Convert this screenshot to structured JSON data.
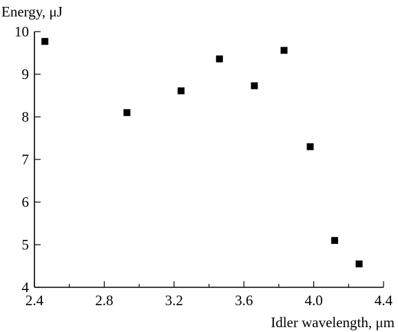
{
  "chart_data": {
    "type": "scatter",
    "xlabel": "Idler wavelength, μm",
    "ylabel": "Energy, μJ",
    "xlim": [
      2.4,
      4.4
    ],
    "ylim": [
      4,
      10
    ],
    "xticks": [
      "2.4",
      "2.8",
      "3.2",
      "3.6",
      "4.0",
      "4.4"
    ],
    "yticks": [
      "4",
      "5",
      "6",
      "7",
      "8",
      "9",
      "10"
    ],
    "grid": false,
    "marker": "filled-square",
    "marker_color": "#000000",
    "points": [
      {
        "x": 2.46,
        "y": 9.77
      },
      {
        "x": 2.93,
        "y": 8.1
      },
      {
        "x": 3.24,
        "y": 8.61
      },
      {
        "x": 3.46,
        "y": 9.36
      },
      {
        "x": 3.66,
        "y": 8.73
      },
      {
        "x": 3.83,
        "y": 9.56
      },
      {
        "x": 3.98,
        "y": 7.3
      },
      {
        "x": 4.12,
        "y": 5.1
      },
      {
        "x": 4.26,
        "y": 4.55
      }
    ]
  }
}
